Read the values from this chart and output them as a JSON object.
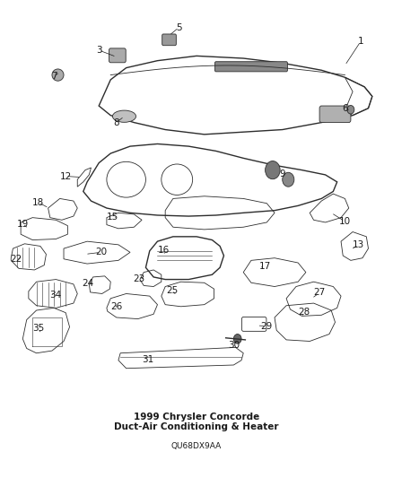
{
  "title": "1999 Chrysler Concorde",
  "subtitle": "Duct-Air Conditioning & Heater",
  "part_number": "QU68DX9AA",
  "background_color": "#ffffff",
  "line_color": "#2d2d2d",
  "label_color": "#1a1a1a",
  "label_fontsize": 7.5,
  "title_fontsize": 7.5,
  "fig_width": 4.38,
  "fig_height": 5.33
}
